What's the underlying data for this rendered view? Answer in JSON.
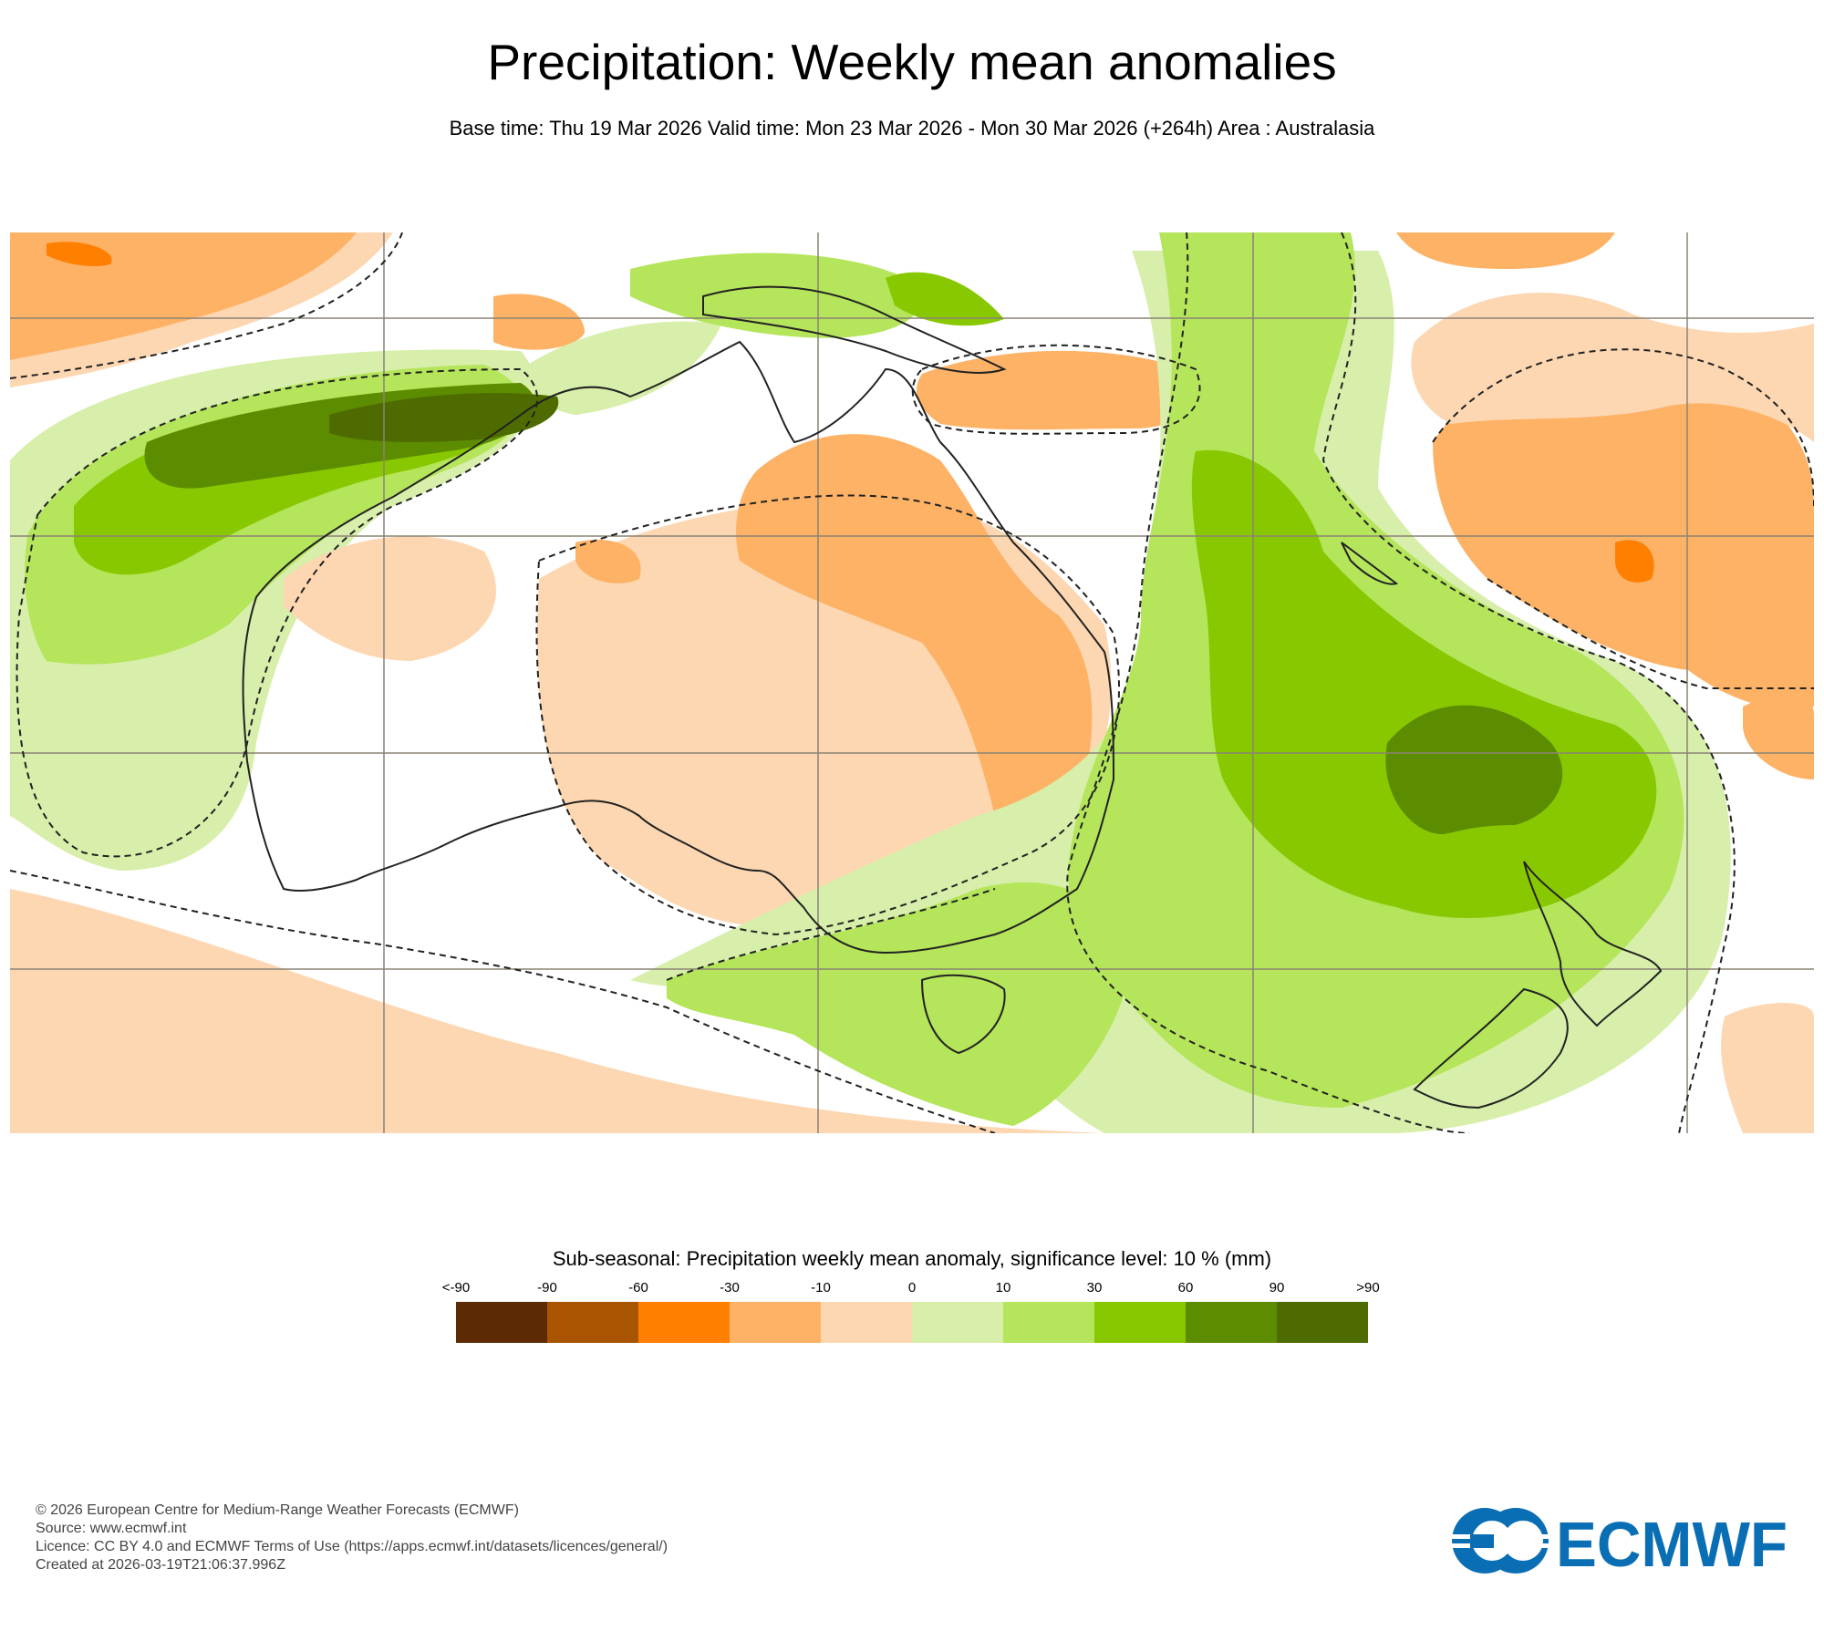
{
  "title": "Precipitation: Weekly mean anomalies",
  "subtitle": "Base time: Thu 19 Mar 2026 Valid time: Mon 23 Mar 2026 - Mon 30 Mar 2026 (+264h) Area : Australasia",
  "legend": {
    "title": "Sub-seasonal: Precipitation weekly mean anomaly, significance level: 10 % (mm)",
    "tick_labels": [
      "<-90",
      "-90",
      "-60",
      "-30",
      "-10",
      "0",
      "10",
      "30",
      "60",
      "90",
      ">90"
    ],
    "colors": [
      "#5c2a04",
      "#a85400",
      "#ff7f00",
      "#fdb266",
      "#fdd7b2",
      "#d7efaa",
      "#b4e55a",
      "#88c800",
      "#5c8c00",
      "#4e6b00"
    ]
  },
  "map_colors": {
    "ocean_background": "#ffffff",
    "neg_10": "#fdd7b2",
    "neg_30": "#fdb266",
    "neg_60": "#ff7f00",
    "pos_0": "#d7efaa",
    "pos_10": "#b4e55a",
    "pos_30": "#88c800",
    "pos_60": "#5c8c00",
    "pos_90": "#4e6b00",
    "coastline": "#222222",
    "gridline": "#8a8474",
    "significance_contour": "#222222"
  },
  "footer": {
    "line1": "© 2026 European Centre for Medium-Range Weather Forecasts (ECMWF)",
    "line2": "Source: www.ecmwf.int",
    "line3": "Licence: CC BY 4.0 and ECMWF Terms of Use (https://apps.ecmwf.int/datasets/licences/general/)",
    "line4": "Created at 2026-03-19T21:06:37.996Z"
  },
  "logo": {
    "text": "ECMWF",
    "color": "#0a6eb4"
  }
}
